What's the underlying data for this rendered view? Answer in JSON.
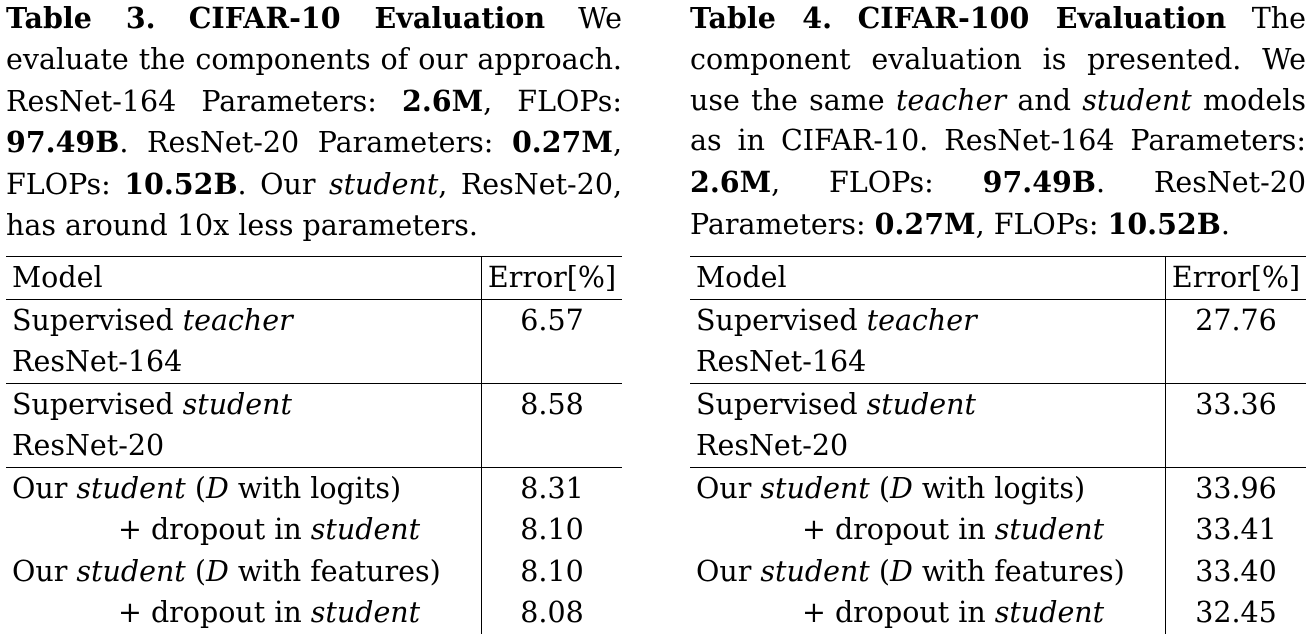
{
  "tables": [
    {
      "caption": {
        "label": "Table 3.",
        "name": "CIFAR-10 Evaluation",
        "parts": [
          {
            "text": " We evaluate the components of our approach. ResNet-164 Parameters: ",
            "style": "normal"
          },
          {
            "text": "2.6M",
            "style": "bold"
          },
          {
            "text": ", FLOPs: ",
            "style": "normal"
          },
          {
            "text": "97.49B",
            "style": "bold"
          },
          {
            "text": ". ResNet-20 Parameters: ",
            "style": "normal"
          },
          {
            "text": "0.27M",
            "style": "bold"
          },
          {
            "text": ", FLOPs: ",
            "style": "normal"
          },
          {
            "text": "10.52B",
            "style": "bold"
          },
          {
            "text": ". Our ",
            "style": "normal"
          },
          {
            "text": "student",
            "style": "italic"
          },
          {
            "text": ", ResNet-20, has around 10x less parameters.",
            "style": "normal"
          }
        ]
      },
      "header": {
        "model": "Model",
        "error": "Error[%]"
      },
      "rows": [
        {
          "line1": [
            {
              "t": "Supervised ",
              "s": "n"
            },
            {
              "t": "teacher",
              "s": "i"
            }
          ],
          "line2": "ResNet-164",
          "error": "6.57",
          "indent": false,
          "sep": true
        },
        {
          "line1": [
            {
              "t": "Supervised ",
              "s": "n"
            },
            {
              "t": "student",
              "s": "i"
            }
          ],
          "line2": "ResNet-20",
          "error": "8.58",
          "indent": false,
          "sep": true
        },
        {
          "line1": [
            {
              "t": "Our ",
              "s": "n"
            },
            {
              "t": "student",
              "s": "i"
            },
            {
              "t": " (",
              "s": "n"
            },
            {
              "t": "D",
              "s": "i"
            },
            {
              "t": " with logits)",
              "s": "n"
            }
          ],
          "line2": "",
          "error": "8.31",
          "indent": false,
          "sep": false
        },
        {
          "line1": [
            {
              "t": "+ dropout in ",
              "s": "n"
            },
            {
              "t": "student",
              "s": "i"
            }
          ],
          "line2": "",
          "error": "8.10",
          "indent": true,
          "sep": false
        },
        {
          "line1": [
            {
              "t": "Our ",
              "s": "n"
            },
            {
              "t": "student",
              "s": "i"
            },
            {
              "t": " (",
              "s": "n"
            },
            {
              "t": "D",
              "s": "i"
            },
            {
              "t": " with features)",
              "s": "n"
            }
          ],
          "line2": "",
          "error": "8.10",
          "indent": false,
          "sep": false
        },
        {
          "line1": [
            {
              "t": "+ dropout in ",
              "s": "n"
            },
            {
              "t": "student",
              "s": "i"
            }
          ],
          "line2": "",
          "error": "8.08",
          "indent": true,
          "sep": false
        }
      ]
    },
    {
      "caption": {
        "label": "Table 4.",
        "name": "CIFAR-100 Evaluation",
        "parts": [
          {
            "text": " The component evaluation is presented. We use the same ",
            "style": "normal"
          },
          {
            "text": "teacher",
            "style": "italic"
          },
          {
            "text": " and ",
            "style": "normal"
          },
          {
            "text": "student",
            "style": "italic"
          },
          {
            "text": " models as in CIFAR-10. ResNet-164 Parameters: ",
            "style": "normal"
          },
          {
            "text": "2.6M",
            "style": "bold"
          },
          {
            "text": ", FLOPs: ",
            "style": "normal"
          },
          {
            "text": "97.49B",
            "style": "bold"
          },
          {
            "text": ". ResNet-20 Parameters: ",
            "style": "normal"
          },
          {
            "text": "0.27M",
            "style": "bold"
          },
          {
            "text": ", FLOPs: ",
            "style": "normal"
          },
          {
            "text": "10.52B",
            "style": "bold"
          },
          {
            "text": ".",
            "style": "normal"
          }
        ]
      },
      "header": {
        "model": "Model",
        "error": "Error[%]"
      },
      "rows": [
        {
          "line1": [
            {
              "t": "Supervised ",
              "s": "n"
            },
            {
              "t": "teacher",
              "s": "i"
            }
          ],
          "line2": "ResNet-164",
          "error": "27.76",
          "indent": false,
          "sep": true
        },
        {
          "line1": [
            {
              "t": "Supervised ",
              "s": "n"
            },
            {
              "t": "student",
              "s": "i"
            }
          ],
          "line2": "ResNet-20",
          "error": "33.36",
          "indent": false,
          "sep": true
        },
        {
          "line1": [
            {
              "t": "Our ",
              "s": "n"
            },
            {
              "t": "student",
              "s": "i"
            },
            {
              "t": " (",
              "s": "n"
            },
            {
              "t": "D",
              "s": "i"
            },
            {
              "t": " with logits)",
              "s": "n"
            }
          ],
          "line2": "",
          "error": "33.96",
          "indent": false,
          "sep": false
        },
        {
          "line1": [
            {
              "t": "+ dropout in ",
              "s": "n"
            },
            {
              "t": "student",
              "s": "i"
            }
          ],
          "line2": "",
          "error": "33.41",
          "indent": true,
          "sep": false
        },
        {
          "line1": [
            {
              "t": "Our ",
              "s": "n"
            },
            {
              "t": "student",
              "s": "i"
            },
            {
              "t": " (",
              "s": "n"
            },
            {
              "t": "D",
              "s": "i"
            },
            {
              "t": " with features)",
              "s": "n"
            }
          ],
          "line2": "",
          "error": "33.40",
          "indent": false,
          "sep": false
        },
        {
          "line1": [
            {
              "t": "+ dropout in ",
              "s": "n"
            },
            {
              "t": "student",
              "s": "i"
            }
          ],
          "line2": "",
          "error": "32.45",
          "indent": true,
          "sep": false
        }
      ]
    }
  ]
}
